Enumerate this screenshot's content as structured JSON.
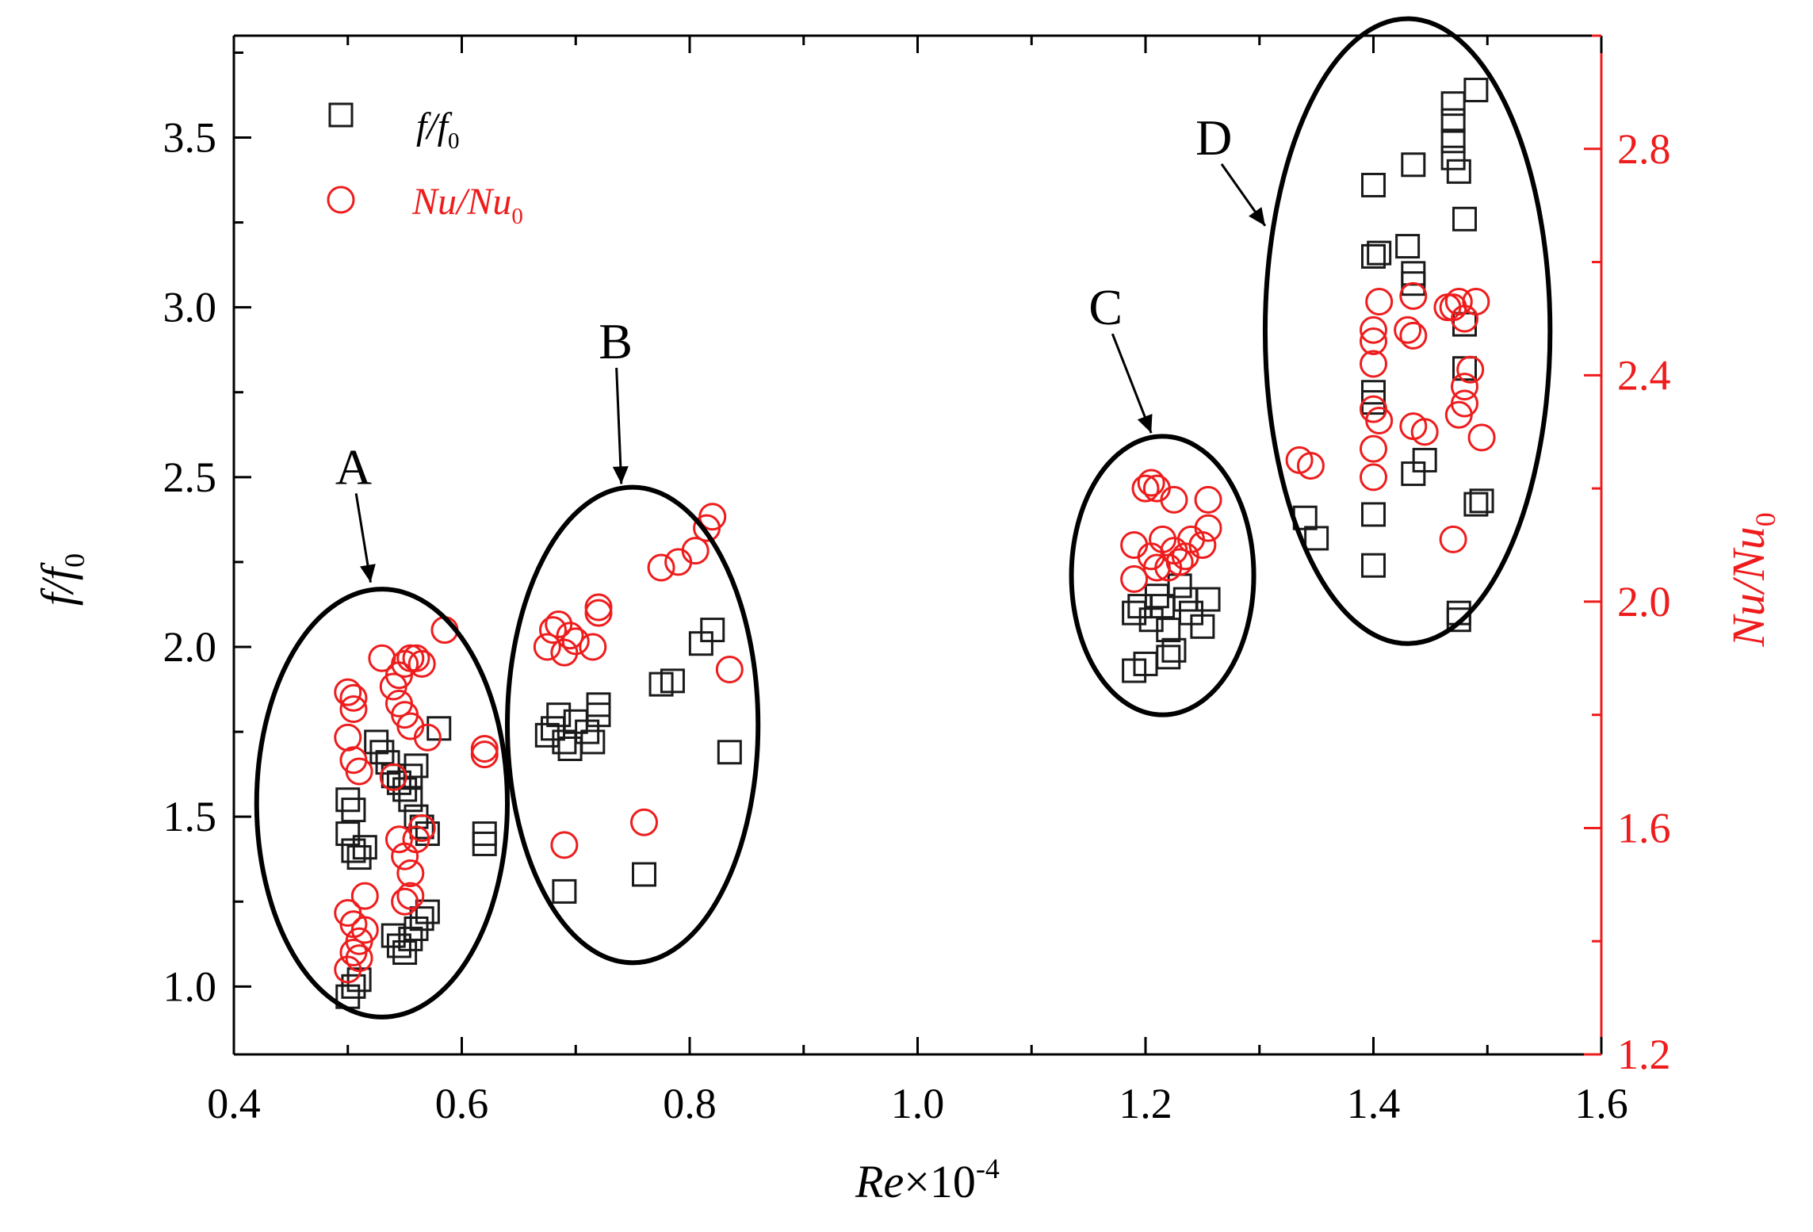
{
  "chart_data": {
    "type": "scatter",
    "title": "",
    "xlabel": {
      "italic": "Re",
      "rest": "×10",
      "sup": "-4"
    },
    "ylabel_left": {
      "main": "f/f",
      "sub": "0"
    },
    "ylabel_right": {
      "main": "Nu/Nu",
      "sub": "0"
    },
    "xlim": [
      0.4,
      1.6
    ],
    "ylim_left": [
      0.8,
      3.8
    ],
    "ylim_right": [
      1.2,
      3.0
    ],
    "x_ticks": [
      0.4,
      0.6,
      0.8,
      1.0,
      1.2,
      1.4,
      1.6
    ],
    "x_tick_labels": [
      "0.4",
      "0.6",
      "0.8",
      "1.0",
      "1.2",
      "1.4",
      "1.6"
    ],
    "y_left_ticks": [
      1.0,
      1.5,
      2.0,
      2.5,
      3.0,
      3.5
    ],
    "y_left_tick_labels": [
      "1.0",
      "1.5",
      "2.0",
      "2.5",
      "3.0",
      "3.5"
    ],
    "y_right_ticks": [
      1.2,
      1.6,
      2.0,
      2.4,
      2.8
    ],
    "y_right_tick_labels": [
      "1.2",
      "1.6",
      "2.0",
      "2.4",
      "2.8"
    ],
    "grid": false,
    "legend_position": "top-left",
    "colors": {
      "axis": "#000000",
      "series_ff": "#1a1a1a",
      "series_nu": "#ee1c1c"
    },
    "series": [
      {
        "name": "f/f0",
        "legend": {
          "main": "f/f",
          "sub": "0"
        },
        "axis": "left",
        "marker": "square",
        "points": [
          [
            0.5,
            0.97
          ],
          [
            0.505,
            1.0
          ],
          [
            0.51,
            1.02
          ],
          [
            0.5,
            1.45
          ],
          [
            0.505,
            1.4
          ],
          [
            0.5,
            1.55
          ],
          [
            0.505,
            1.52
          ],
          [
            0.51,
            1.38
          ],
          [
            0.515,
            1.41
          ],
          [
            0.525,
            1.72
          ],
          [
            0.53,
            1.69
          ],
          [
            0.535,
            1.66
          ],
          [
            0.54,
            1.62
          ],
          [
            0.545,
            1.6
          ],
          [
            0.55,
            1.58
          ],
          [
            0.555,
            1.55
          ],
          [
            0.56,
            1.5
          ],
          [
            0.565,
            1.47
          ],
          [
            0.57,
            1.45
          ],
          [
            0.555,
            1.62
          ],
          [
            0.56,
            1.65
          ],
          [
            0.54,
            1.15
          ],
          [
            0.545,
            1.12
          ],
          [
            0.55,
            1.1
          ],
          [
            0.555,
            1.14
          ],
          [
            0.56,
            1.17
          ],
          [
            0.565,
            1.2
          ],
          [
            0.57,
            1.22
          ],
          [
            0.58,
            1.76
          ],
          [
            0.62,
            1.42
          ],
          [
            0.62,
            1.45
          ],
          [
            0.675,
            1.74
          ],
          [
            0.68,
            1.76
          ],
          [
            0.685,
            1.8
          ],
          [
            0.69,
            1.72
          ],
          [
            0.695,
            1.7
          ],
          [
            0.7,
            1.78
          ],
          [
            0.71,
            1.75
          ],
          [
            0.715,
            1.72
          ],
          [
            0.72,
            1.8
          ],
          [
            0.72,
            1.83
          ],
          [
            0.69,
            1.28
          ],
          [
            0.76,
            1.33
          ],
          [
            0.775,
            1.89
          ],
          [
            0.785,
            1.9
          ],
          [
            0.81,
            2.01
          ],
          [
            0.82,
            2.05
          ],
          [
            0.835,
            1.69
          ],
          [
            1.19,
            1.93
          ],
          [
            1.19,
            2.1
          ],
          [
            1.195,
            2.12
          ],
          [
            1.2,
            1.95
          ],
          [
            1.205,
            2.08
          ],
          [
            1.21,
            2.15
          ],
          [
            1.215,
            2.12
          ],
          [
            1.22,
            2.05
          ],
          [
            1.22,
            1.97
          ],
          [
            1.225,
            1.99
          ],
          [
            1.23,
            2.18
          ],
          [
            1.235,
            2.14
          ],
          [
            1.24,
            2.1
          ],
          [
            1.25,
            2.06
          ],
          [
            1.255,
            2.14
          ],
          [
            1.34,
            2.38
          ],
          [
            1.35,
            2.32
          ],
          [
            1.4,
            2.24
          ],
          [
            1.4,
            2.39
          ],
          [
            1.4,
            2.72
          ],
          [
            1.4,
            2.75
          ],
          [
            1.4,
            3.36
          ],
          [
            1.4,
            3.15
          ],
          [
            1.405,
            3.16
          ],
          [
            1.43,
            3.18
          ],
          [
            1.435,
            3.1
          ],
          [
            1.435,
            3.07
          ],
          [
            1.435,
            3.42
          ],
          [
            1.435,
            2.51
          ],
          [
            1.445,
            2.55
          ],
          [
            1.47,
            3.6
          ],
          [
            1.47,
            3.55
          ],
          [
            1.47,
            3.49
          ],
          [
            1.47,
            3.44
          ],
          [
            1.475,
            3.4
          ],
          [
            1.48,
            3.26
          ],
          [
            1.48,
            2.82
          ],
          [
            1.48,
            2.95
          ],
          [
            1.475,
            2.08
          ],
          [
            1.475,
            2.1
          ],
          [
            1.49,
            3.64
          ],
          [
            1.495,
            2.43
          ],
          [
            1.49,
            2.42
          ]
        ]
      },
      {
        "name": "Nu/Nu0",
        "legend": {
          "main": "Nu/Nu",
          "sub": "0"
        },
        "axis": "right",
        "marker": "circle",
        "points": [
          [
            0.5,
            1.84
          ],
          [
            0.505,
            1.83
          ],
          [
            0.505,
            1.81
          ],
          [
            0.5,
            1.76
          ],
          [
            0.505,
            1.72
          ],
          [
            0.51,
            1.7
          ],
          [
            0.5,
            1.45
          ],
          [
            0.505,
            1.43
          ],
          [
            0.51,
            1.4
          ],
          [
            0.505,
            1.38
          ],
          [
            0.5,
            1.35
          ],
          [
            0.51,
            1.37
          ],
          [
            0.515,
            1.42
          ],
          [
            0.515,
            1.48
          ],
          [
            0.53,
            1.9
          ],
          [
            0.54,
            1.85
          ],
          [
            0.545,
            1.87
          ],
          [
            0.55,
            1.89
          ],
          [
            0.555,
            1.9
          ],
          [
            0.56,
            1.9
          ],
          [
            0.565,
            1.89
          ],
          [
            0.545,
            1.82
          ],
          [
            0.55,
            1.8
          ],
          [
            0.555,
            1.78
          ],
          [
            0.57,
            1.76
          ],
          [
            0.54,
            1.69
          ],
          [
            0.545,
            1.58
          ],
          [
            0.55,
            1.55
          ],
          [
            0.555,
            1.52
          ],
          [
            0.56,
            1.58
          ],
          [
            0.565,
            1.6
          ],
          [
            0.55,
            1.47
          ],
          [
            0.555,
            1.48
          ],
          [
            0.585,
            1.95
          ],
          [
            0.62,
            1.74
          ],
          [
            0.62,
            1.73
          ],
          [
            0.675,
            1.92
          ],
          [
            0.68,
            1.95
          ],
          [
            0.685,
            1.96
          ],
          [
            0.69,
            1.91
          ],
          [
            0.695,
            1.94
          ],
          [
            0.7,
            1.93
          ],
          [
            0.715,
            1.92
          ],
          [
            0.72,
            1.98
          ],
          [
            0.72,
            1.99
          ],
          [
            0.69,
            1.57
          ],
          [
            0.76,
            1.61
          ],
          [
            0.775,
            2.06
          ],
          [
            0.79,
            2.07
          ],
          [
            0.805,
            2.09
          ],
          [
            0.815,
            2.13
          ],
          [
            0.82,
            2.15
          ],
          [
            0.835,
            1.88
          ],
          [
            1.19,
            2.1
          ],
          [
            1.19,
            2.04
          ],
          [
            1.2,
            2.2
          ],
          [
            1.205,
            2.21
          ],
          [
            1.21,
            2.2
          ],
          [
            1.205,
            2.08
          ],
          [
            1.21,
            2.06
          ],
          [
            1.215,
            2.11
          ],
          [
            1.22,
            2.06
          ],
          [
            1.225,
            2.09
          ],
          [
            1.225,
            2.18
          ],
          [
            1.23,
            2.07
          ],
          [
            1.235,
            2.08
          ],
          [
            1.24,
            2.11
          ],
          [
            1.25,
            2.1
          ],
          [
            1.255,
            2.13
          ],
          [
            1.255,
            2.18
          ],
          [
            1.335,
            2.25
          ],
          [
            1.345,
            2.24
          ],
          [
            1.4,
            2.48
          ],
          [
            1.4,
            2.46
          ],
          [
            1.405,
            2.53
          ],
          [
            1.4,
            2.42
          ],
          [
            1.4,
            2.34
          ],
          [
            1.405,
            2.32
          ],
          [
            1.4,
            2.27
          ],
          [
            1.4,
            2.22
          ],
          [
            1.43,
            2.48
          ],
          [
            1.435,
            2.47
          ],
          [
            1.435,
            2.54
          ],
          [
            1.435,
            2.31
          ],
          [
            1.445,
            2.3
          ],
          [
            1.465,
            2.52
          ],
          [
            1.47,
            2.52
          ],
          [
            1.475,
            2.53
          ],
          [
            1.48,
            2.5
          ],
          [
            1.48,
            2.38
          ],
          [
            1.48,
            2.35
          ],
          [
            1.485,
            2.41
          ],
          [
            1.475,
            2.33
          ],
          [
            1.49,
            2.53
          ],
          [
            1.495,
            2.29
          ],
          [
            1.47,
            2.11
          ]
        ]
      }
    ],
    "annotations": [
      {
        "label": "A",
        "center": [
          0.53,
          1.54
        ],
        "rx_data": 0.11,
        "ry_data_left": 0.63,
        "label_at": [
          0.505,
          2.48
        ],
        "arrow_to": [
          0.52,
          2.19
        ]
      },
      {
        "label": "B",
        "center": [
          0.75,
          1.77
        ],
        "rx_data": 0.11,
        "ry_data_left": 0.7,
        "label_at": [
          0.735,
          2.85
        ],
        "arrow_to": [
          0.74,
          2.48
        ]
      },
      {
        "label": "C",
        "center": [
          1.215,
          2.21
        ],
        "rx_data": 0.08,
        "ry_data_left": 0.41,
        "label_at": [
          1.165,
          2.95
        ],
        "arrow_to": [
          1.205,
          2.63
        ]
      },
      {
        "label": "D",
        "center": [
          1.43,
          2.93
        ],
        "rx_data": 0.125,
        "ry_data_left": 0.92,
        "label_at": [
          1.26,
          3.45
        ],
        "arrow_to": [
          1.305,
          3.24
        ]
      }
    ]
  }
}
